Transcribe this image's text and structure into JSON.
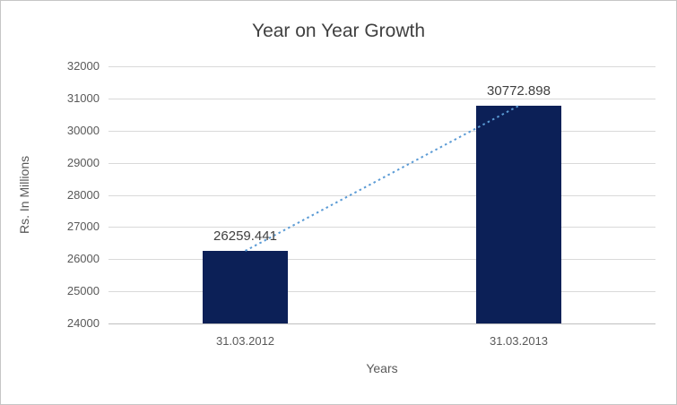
{
  "chart_data": {
    "type": "bar",
    "title": "Year on Year Growth",
    "xlabel": "Years",
    "ylabel": "Rs. In Millions",
    "categories": [
      "31.03.2012",
      "31.03.2013"
    ],
    "values": [
      26259.441,
      30772.898
    ],
    "data_labels": [
      "26259.441",
      "30772.898"
    ],
    "ylim": [
      24000,
      32000
    ],
    "yticks": [
      24000,
      25000,
      26000,
      27000,
      28000,
      29000,
      30000,
      31000,
      32000
    ],
    "grid": true,
    "legend": false,
    "bar_color": "#0c2057",
    "trendline": {
      "type": "linear",
      "style": "dotted",
      "color": "#5b9bd5"
    },
    "colors": {
      "title_text": "#404040",
      "axis_text": "#595959",
      "gridline": "#d9d9d9",
      "border": "#c6c6c6"
    }
  }
}
